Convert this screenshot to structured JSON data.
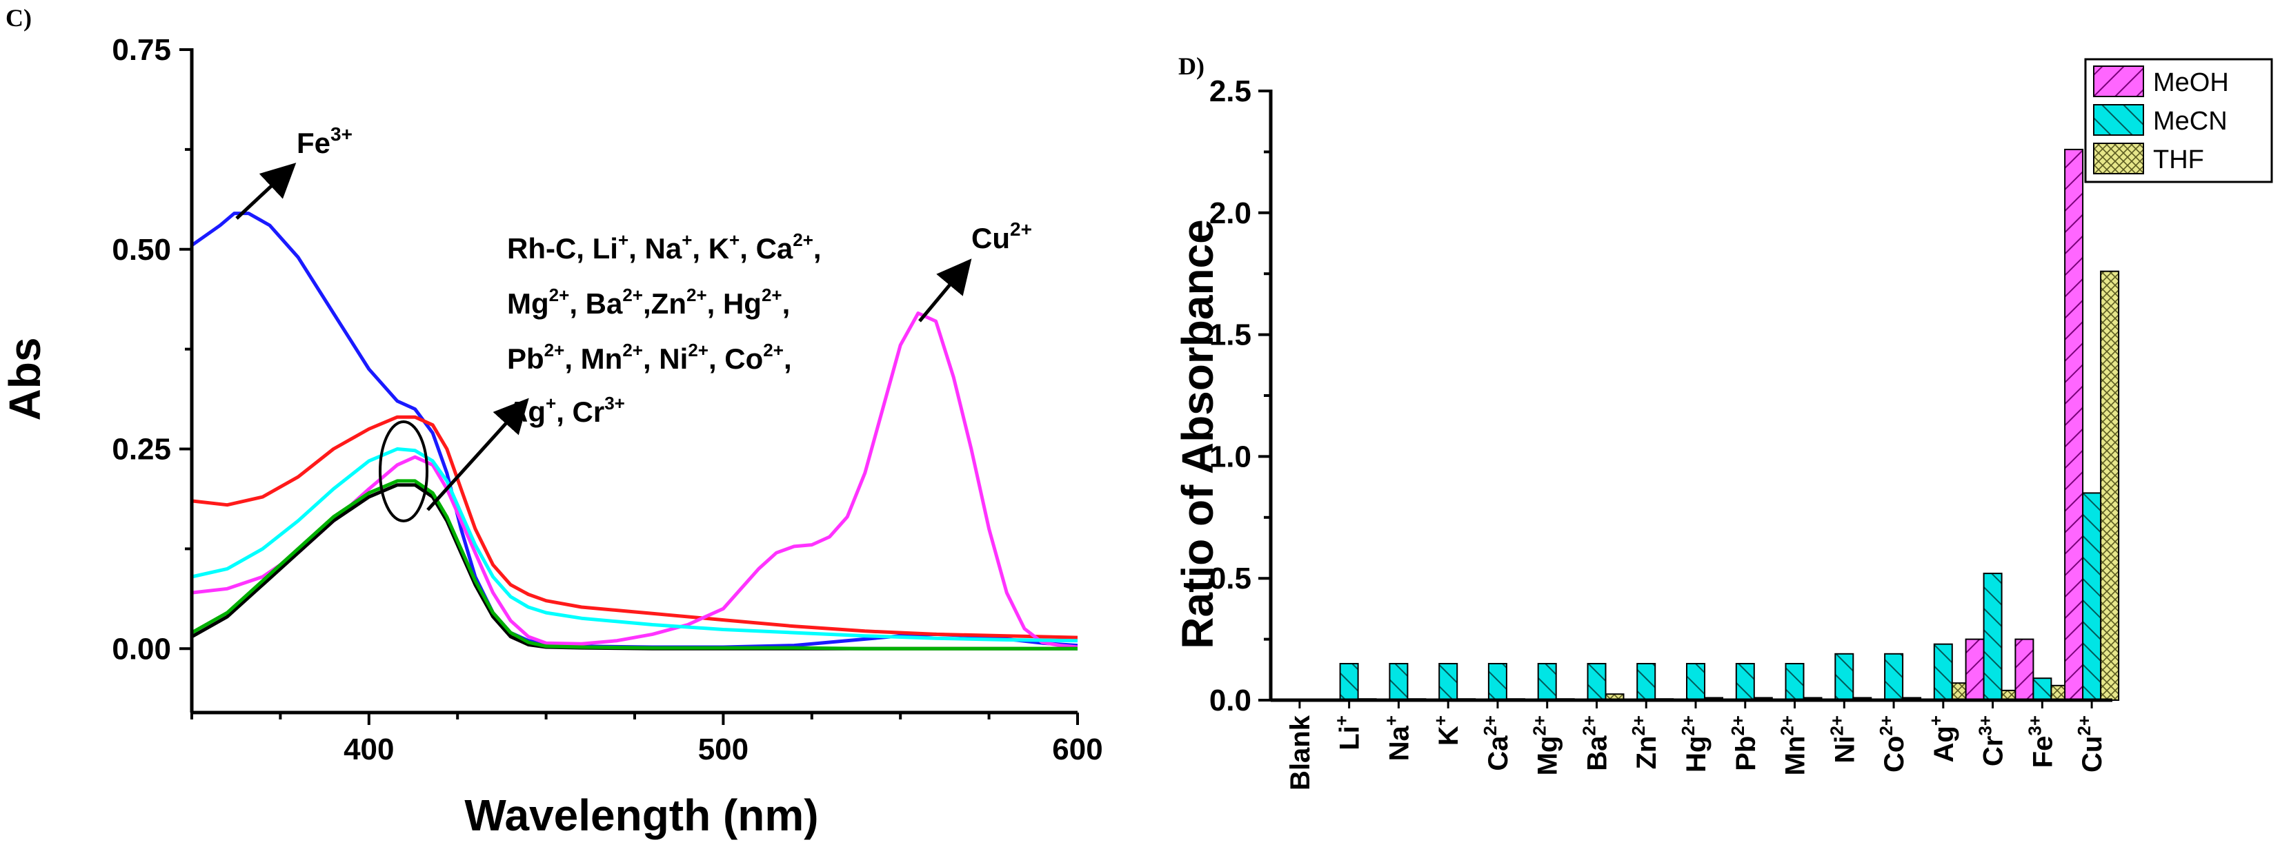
{
  "chart_data": [
    {
      "panel": "C)",
      "type": "line",
      "xlabel": "Wavelength (nm)",
      "ylabel": "Abs",
      "xlim": [
        350,
        600
      ],
      "ylim": [
        -0.08,
        0.75
      ],
      "xticks": [
        400,
        500,
        600
      ],
      "yticks": [
        0.0,
        0.25,
        0.5,
        0.75
      ],
      "ytick_labels": [
        "0.00",
        "0.25",
        "0.50",
        "0.75"
      ],
      "series": [
        {
          "name": "Fe3+",
          "color": "#1a1aff",
          "x": [
            350,
            358,
            362,
            366,
            372,
            380,
            390,
            400,
            408,
            413,
            418,
            422,
            426,
            430,
            435,
            440,
            445,
            450,
            460,
            480,
            500,
            520,
            540,
            550,
            560,
            570,
            580,
            590,
            600
          ],
          "y": [
            0.505,
            0.53,
            0.545,
            0.545,
            0.53,
            0.49,
            0.42,
            0.35,
            0.31,
            0.3,
            0.27,
            0.22,
            0.15,
            0.09,
            0.045,
            0.02,
            0.01,
            0.005,
            0.003,
            0.002,
            0.002,
            0.004,
            0.012,
            0.016,
            0.018,
            0.016,
            0.012,
            0.007,
            0.004
          ]
        },
        {
          "name": "Cr3+",
          "color": "#ff1a1a",
          "x": [
            350,
            360,
            370,
            380,
            390,
            400,
            408,
            413,
            418,
            422,
            426,
            430,
            435,
            440,
            445,
            450,
            460,
            480,
            500,
            520,
            540,
            560,
            580,
            600
          ],
          "y": [
            0.185,
            0.18,
            0.19,
            0.215,
            0.25,
            0.275,
            0.29,
            0.29,
            0.28,
            0.25,
            0.2,
            0.15,
            0.105,
            0.08,
            0.068,
            0.06,
            0.052,
            0.044,
            0.036,
            0.028,
            0.022,
            0.018,
            0.016,
            0.014
          ]
        },
        {
          "name": "Cu2+",
          "color": "#ff33ff",
          "x": [
            350,
            360,
            370,
            380,
            390,
            400,
            408,
            413,
            418,
            422,
            426,
            430,
            435,
            440,
            445,
            450,
            460,
            470,
            480,
            490,
            500,
            505,
            510,
            515,
            520,
            525,
            530,
            535,
            540,
            545,
            550,
            555,
            560,
            565,
            570,
            575,
            580,
            585,
            590,
            595,
            600
          ],
          "y": [
            0.07,
            0.075,
            0.09,
            0.12,
            0.16,
            0.2,
            0.23,
            0.24,
            0.23,
            0.2,
            0.16,
            0.12,
            0.07,
            0.035,
            0.015,
            0.007,
            0.006,
            0.01,
            0.018,
            0.03,
            0.05,
            0.075,
            0.1,
            0.12,
            0.128,
            0.13,
            0.14,
            0.165,
            0.22,
            0.3,
            0.38,
            0.42,
            0.41,
            0.34,
            0.25,
            0.15,
            0.07,
            0.025,
            0.008,
            0.004,
            0.002
          ]
        },
        {
          "name": "Ag+",
          "color": "#00ffff",
          "x": [
            350,
            360,
            370,
            380,
            390,
            400,
            408,
            413,
            418,
            422,
            426,
            430,
            435,
            440,
            445,
            450,
            460,
            480,
            500,
            520,
            540,
            560,
            580,
            600
          ],
          "y": [
            0.09,
            0.1,
            0.125,
            0.16,
            0.2,
            0.235,
            0.25,
            0.248,
            0.235,
            0.21,
            0.17,
            0.13,
            0.09,
            0.065,
            0.052,
            0.045,
            0.038,
            0.03,
            0.024,
            0.02,
            0.016,
            0.013,
            0.011,
            0.01
          ]
        },
        {
          "name": "Rh-C",
          "color": "#000000",
          "x": [
            350,
            360,
            370,
            380,
            390,
            400,
            408,
            413,
            418,
            422,
            426,
            430,
            435,
            440,
            445,
            450,
            460,
            480,
            500,
            520,
            540,
            560,
            580,
            600
          ],
          "y": [
            0.015,
            0.04,
            0.08,
            0.12,
            0.16,
            0.19,
            0.205,
            0.205,
            0.19,
            0.16,
            0.12,
            0.08,
            0.04,
            0.015,
            0.005,
            0.002,
            0.001,
            0.0,
            0.0,
            0.0,
            0.0,
            0.0,
            0.0,
            0.0
          ]
        },
        {
          "name": "Li+",
          "color": "#00b000",
          "x": [
            350,
            360,
            370,
            380,
            390,
            400,
            408,
            413,
            418,
            422,
            426,
            430,
            435,
            440,
            445,
            450,
            460,
            480,
            500,
            520,
            540,
            560,
            580,
            600
          ],
          "y": [
            0.02,
            0.045,
            0.085,
            0.125,
            0.165,
            0.195,
            0.21,
            0.21,
            0.195,
            0.165,
            0.125,
            0.085,
            0.045,
            0.02,
            0.008,
            0.003,
            0.002,
            0.001,
            0.001,
            0.001,
            0.0,
            0.0,
            0.0,
            0.0
          ]
        }
      ],
      "annotations": {
        "fe_label": "Fe",
        "fe_sup": "3+",
        "cu_label": "Cu",
        "cu_sup": "2+",
        "group_lines": [
          [
            {
              "t": "Rh-C, Li"
            },
            {
              "t": "+",
              "sup": true
            },
            {
              "t": ", Na"
            },
            {
              "t": "+",
              "sup": true
            },
            {
              "t": ", K"
            },
            {
              "t": "+",
              "sup": true
            },
            {
              "t": ", Ca"
            },
            {
              "t": "2+",
              "sup": true
            },
            {
              "t": ","
            }
          ],
          [
            {
              "t": "Mg"
            },
            {
              "t": "2+",
              "sup": true
            },
            {
              "t": ", Ba"
            },
            {
              "t": "2+",
              "sup": true
            },
            {
              "t": ",Zn"
            },
            {
              "t": "2+",
              "sup": true
            },
            {
              "t": ", Hg"
            },
            {
              "t": "2+",
              "sup": true
            },
            {
              "t": ","
            }
          ],
          [
            {
              "t": "Pb"
            },
            {
              "t": "2+",
              "sup": true
            },
            {
              "t": ", Mn"
            },
            {
              "t": "2+",
              "sup": true
            },
            {
              "t": ", Ni"
            },
            {
              "t": "2+",
              "sup": true
            },
            {
              "t": ", Co"
            },
            {
              "t": "2+",
              "sup": true
            },
            {
              "t": ","
            }
          ],
          [
            {
              "t": "Ag"
            },
            {
              "t": "+",
              "sup": true
            },
            {
              "t": ", Cr"
            },
            {
              "t": "3+",
              "sup": true
            }
          ]
        ]
      }
    },
    {
      "panel": "D)",
      "type": "bar",
      "xlabel": "",
      "ylabel": "Ratio of Absorbance",
      "ylim": [
        0,
        2.5
      ],
      "yticks": [
        0.0,
        0.5,
        1.0,
        1.5,
        2.0,
        2.5
      ],
      "ytick_labels": [
        "0.0",
        "0.5",
        "1.0",
        "1.5",
        "2.0",
        "2.5"
      ],
      "categories": [
        {
          "base": "Blank",
          "sup": ""
        },
        {
          "base": "Li",
          "sup": "+"
        },
        {
          "base": "Na",
          "sup": "+"
        },
        {
          "base": "K",
          "sup": "+"
        },
        {
          "base": "Ca",
          "sup": "2+"
        },
        {
          "base": "Mg",
          "sup": "2+"
        },
        {
          "base": "Ba",
          "sup": "2+"
        },
        {
          "base": "Zn",
          "sup": "2+"
        },
        {
          "base": "Hg",
          "sup": "2+"
        },
        {
          "base": "Pb",
          "sup": "2+"
        },
        {
          "base": "Mn",
          "sup": "2+"
        },
        {
          "base": "Ni",
          "sup": "2+"
        },
        {
          "base": "Co",
          "sup": "2+"
        },
        {
          "base": "Ag",
          "sup": "+"
        },
        {
          "base": "Cr",
          "sup": "3+"
        },
        {
          "base": "Fe",
          "sup": "3+"
        },
        {
          "base": "Cu",
          "sup": "2+"
        }
      ],
      "series": [
        {
          "name": "MeOH",
          "color": "#ff66ff",
          "hatch": "diag-right",
          "values": [
            0,
            0,
            0,
            0,
            0,
            0,
            0,
            0,
            0,
            0,
            0,
            0,
            0,
            0,
            0.25,
            0.25,
            2.26
          ]
        },
        {
          "name": "MeCN",
          "color": "#00e5e5",
          "hatch": "diag-left",
          "values": [
            0,
            0.15,
            0.15,
            0.15,
            0.15,
            0.15,
            0.15,
            0.15,
            0.15,
            0.15,
            0.15,
            0.19,
            0.19,
            0.23,
            0.52,
            0.09,
            0.85
          ]
        },
        {
          "name": "THF",
          "color": "#e6e68a",
          "hatch": "cross",
          "values": [
            0,
            0.005,
            0.005,
            0.005,
            0.005,
            0.005,
            0.025,
            0.005,
            0.01,
            0.01,
            0.01,
            0.01,
            0.01,
            0.07,
            0.04,
            0.06,
            1.76
          ]
        }
      ],
      "legend_position": "top-right"
    }
  ]
}
